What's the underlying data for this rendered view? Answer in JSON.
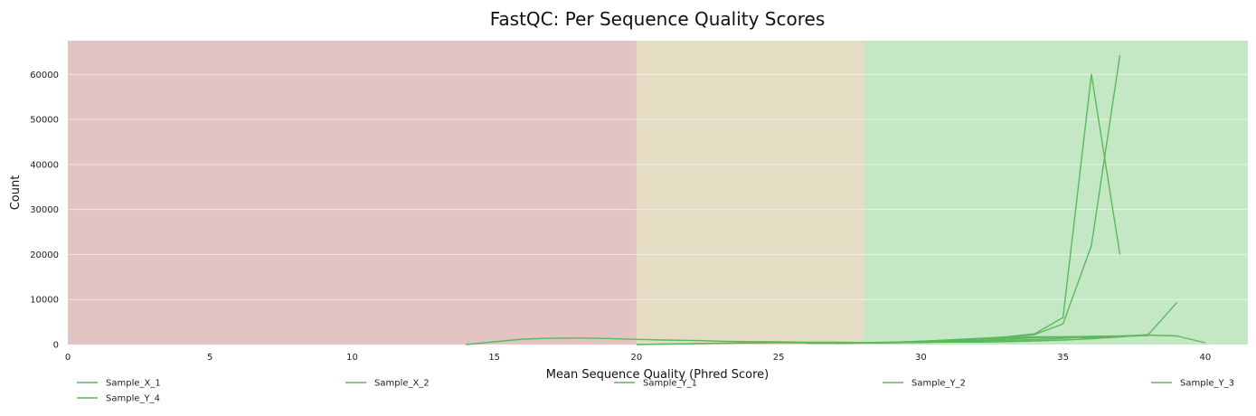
{
  "chart_data": {
    "type": "line",
    "title": "FastQC: Per Sequence Quality Scores",
    "xlabel": "Mean Sequence Quality (Phred Score)",
    "ylabel": "Count",
    "xlim": [
      0,
      41.5
    ],
    "ylim": [
      0,
      67500
    ],
    "xticks": [
      0,
      5,
      10,
      15,
      20,
      25,
      30,
      35,
      40
    ],
    "yticks": [
      0,
      10000,
      20000,
      30000,
      40000,
      50000,
      60000
    ],
    "grid": true,
    "legend_position": "bottom",
    "zones": [
      {
        "from": 0,
        "to": 20,
        "color": "#e4c3c3"
      },
      {
        "from": 20,
        "to": 28,
        "color": "#e5dcc4"
      },
      {
        "from": 28,
        "to": 41.5,
        "color": "#c4e7c4"
      }
    ],
    "line_color": "#5cb85c",
    "series": [
      {
        "name": "Sample_X_1",
        "x": [
          14,
          15,
          16,
          17,
          18,
          19,
          20,
          21,
          22,
          23,
          24,
          25,
          26,
          27,
          28,
          29,
          30,
          31,
          32,
          33,
          34,
          35,
          36,
          37
        ],
        "y": [
          0,
          600,
          1200,
          1400,
          1450,
          1350,
          1150,
          1000,
          900,
          750,
          650,
          600,
          500,
          500,
          450,
          500,
          600,
          800,
          1200,
          1500,
          1700,
          1700,
          1500,
          1700
        ]
      },
      {
        "name": "Sample_X_2",
        "x": [
          27,
          28,
          29,
          30,
          31,
          32,
          33,
          34,
          35,
          36,
          37
        ],
        "y": [
          300,
          350,
          500,
          700,
          1000,
          1300,
          1700,
          2400,
          6000,
          60000,
          20000
        ]
      },
      {
        "name": "Sample_Y_1",
        "x": [
          27,
          28,
          29,
          30,
          31,
          32,
          33,
          34,
          35,
          36,
          37
        ],
        "y": [
          300,
          350,
          500,
          750,
          1050,
          1350,
          1600,
          2200,
          4600,
          22000,
          64300
        ]
      },
      {
        "name": "Sample_Y_2",
        "x": [
          20,
          21,
          22,
          23,
          24,
          25,
          26,
          27,
          28,
          29,
          30,
          31,
          32,
          33,
          34,
          35,
          36,
          37,
          38,
          39
        ],
        "y": [
          50,
          100,
          200,
          300,
          350,
          400,
          400,
          400,
          400,
          450,
          500,
          550,
          550,
          650,
          800,
          1000,
          1300,
          1700,
          2200,
          9300
        ]
      },
      {
        "name": "Sample_Y_3",
        "x": [
          20,
          22,
          24,
          25,
          26,
          27,
          28,
          29,
          30,
          31,
          32,
          33,
          34,
          35,
          36,
          37,
          38,
          39,
          40
        ],
        "y": [
          0,
          200,
          400,
          450,
          400,
          350,
          350,
          400,
          500,
          600,
          700,
          900,
          1100,
          1400,
          1800,
          1900,
          2100,
          1900,
          400
        ]
      },
      {
        "name": "Sample_Y_4",
        "x": [
          26,
          27,
          28,
          29,
          30,
          31,
          32,
          33,
          34,
          35,
          36,
          37,
          38
        ],
        "y": [
          300,
          300,
          350,
          400,
          500,
          650,
          900,
          1200,
          1500,
          1700,
          1800,
          1800,
          2000
        ]
      }
    ]
  }
}
